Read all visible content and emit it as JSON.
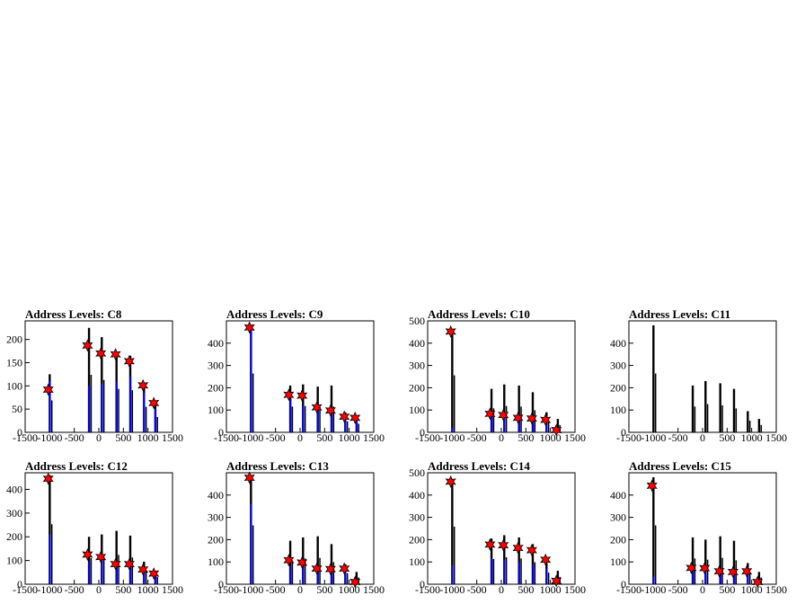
{
  "figure": {
    "background": "#ffffff",
    "colors": {
      "hist_black": "#000000",
      "hist_blue": "#0000ff",
      "marker_red": "#ff0000"
    }
  },
  "chart_data": [
    {
      "type": "histogram",
      "title": "Address Levels: C8",
      "xlim": [
        -1500,
        1500
      ],
      "ylim": [
        0,
        240
      ],
      "xticks": [
        "-1500",
        "-1000",
        "-500",
        "0",
        "500",
        "1000",
        "1500"
      ],
      "yticks": [
        0,
        50,
        100,
        150,
        200
      ],
      "black_peaks": [
        [
          -1000,
          125
        ],
        [
          -1020,
          0
        ],
        [
          -200,
          225
        ],
        [
          60,
          205
        ],
        [
          360,
          170
        ],
        [
          640,
          165
        ],
        [
          920,
          100
        ],
        [
          1150,
          60
        ]
      ],
      "blue_peaks": [
        [
          -1000,
          110
        ],
        [
          -200,
          100
        ],
        [
          60,
          105
        ],
        [
          360,
          110
        ],
        [
          640,
          120
        ],
        [
          920,
          85
        ],
        [
          1150,
          50
        ]
      ],
      "markers": [
        [
          -1030,
          92
        ],
        [
          -230,
          187
        ],
        [
          40,
          170
        ],
        [
          340,
          168
        ],
        [
          620,
          153
        ],
        [
          900,
          101
        ],
        [
          1120,
          63
        ]
      ]
    },
    {
      "type": "histogram",
      "title": "Address Levels: C9",
      "xlim": [
        -1500,
        1500
      ],
      "ylim": [
        0,
        500
      ],
      "xticks": [
        "-1500",
        "-1000",
        "-500",
        "0",
        "500",
        "1000",
        "1500"
      ],
      "yticks": [
        0,
        100,
        200,
        300,
        400
      ],
      "black_peaks": [
        [
          -1000,
          480
        ],
        [
          -200,
          210
        ],
        [
          60,
          215
        ],
        [
          360,
          205
        ],
        [
          640,
          210
        ],
        [
          920,
          90
        ],
        [
          1150,
          70
        ]
      ],
      "blue_peaks": [
        [
          -1000,
          480
        ],
        [
          -200,
          150
        ],
        [
          60,
          120
        ],
        [
          360,
          120
        ],
        [
          640,
          110
        ],
        [
          920,
          70
        ],
        [
          1150,
          50
        ]
      ],
      "markers": [
        [
          -1030,
          470
        ],
        [
          -230,
          168
        ],
        [
          40,
          165
        ],
        [
          340,
          112
        ],
        [
          620,
          98
        ],
        [
          900,
          70
        ],
        [
          1120,
          65
        ]
      ]
    },
    {
      "type": "histogram",
      "title": "Address Levels: C10",
      "xlim": [
        -1500,
        1500
      ],
      "ylim": [
        0,
        500
      ],
      "xticks": [
        "-1500",
        "-1000",
        "-500",
        "0",
        "500",
        "1000",
        "1500"
      ],
      "yticks": [
        0,
        100,
        200,
        300,
        400,
        500
      ],
      "black_peaks": [
        [
          -1000,
          465
        ],
        [
          -200,
          195
        ],
        [
          60,
          215
        ],
        [
          360,
          210
        ],
        [
          640,
          180
        ],
        [
          920,
          90
        ],
        [
          1150,
          60
        ]
      ],
      "blue_peaks": [
        [
          -1000,
          20
        ],
        [
          -200,
          70
        ],
        [
          60,
          70
        ],
        [
          360,
          60
        ],
        [
          640,
          50
        ],
        [
          920,
          40
        ],
        [
          1150,
          15
        ]
      ],
      "markers": [
        [
          -1030,
          452
        ],
        [
          -230,
          83
        ],
        [
          40,
          78
        ],
        [
          340,
          65
        ],
        [
          620,
          62
        ],
        [
          900,
          56
        ],
        [
          1120,
          10
        ]
      ]
    },
    {
      "type": "histogram",
      "title": "Address Levels: C11",
      "xlim": [
        -1500,
        1500
      ],
      "ylim": [
        0,
        500
      ],
      "xticks": [
        "-1500",
        "-1000",
        "-500",
        "0",
        "500",
        "1000",
        "1500"
      ],
      "yticks": [
        0,
        100,
        200,
        300,
        400
      ],
      "black_peaks": [
        [
          -1000,
          480
        ],
        [
          -200,
          210
        ],
        [
          60,
          230
        ],
        [
          360,
          220
        ],
        [
          640,
          195
        ],
        [
          920,
          95
        ],
        [
          1150,
          60
        ]
      ],
      "blue_peaks": [],
      "markers": []
    },
    {
      "type": "histogram",
      "title": "Address Levels: C12",
      "xlim": [
        -1500,
        1500
      ],
      "ylim": [
        0,
        470
      ],
      "xticks": [
        "-1500",
        "-1000",
        "-500",
        "0",
        "500",
        "1000",
        "1500"
      ],
      "yticks": [
        0,
        100,
        200,
        300,
        400
      ],
      "black_peaks": [
        [
          -1000,
          460
        ],
        [
          -200,
          200
        ],
        [
          60,
          210
        ],
        [
          360,
          225
        ],
        [
          640,
          205
        ],
        [
          920,
          95
        ],
        [
          1150,
          55
        ]
      ],
      "blue_peaks": [
        [
          -1000,
          210
        ],
        [
          -200,
          95
        ],
        [
          60,
          100
        ],
        [
          360,
          95
        ],
        [
          640,
          90
        ],
        [
          920,
          65
        ],
        [
          1150,
          40
        ]
      ],
      "markers": [
        [
          -1030,
          445
        ],
        [
          -230,
          125
        ],
        [
          40,
          115
        ],
        [
          340,
          85
        ],
        [
          620,
          85
        ],
        [
          900,
          62
        ],
        [
          1120,
          45
        ]
      ]
    },
    {
      "type": "histogram",
      "title": "Address Levels: C13",
      "xlim": [
        -1500,
        1500
      ],
      "ylim": [
        0,
        500
      ],
      "xticks": [
        "-1500",
        "-1000",
        "-500",
        "0",
        "500",
        "1000",
        "1500"
      ],
      "yticks": [
        0,
        100,
        200,
        300,
        400
      ],
      "black_peaks": [
        [
          -1000,
          480
        ],
        [
          -200,
          195
        ],
        [
          60,
          210
        ],
        [
          360,
          215
        ],
        [
          640,
          180
        ],
        [
          920,
          90
        ],
        [
          1150,
          55
        ]
      ],
      "blue_peaks": [
        [
          -1000,
          360
        ],
        [
          -200,
          80
        ],
        [
          60,
          75
        ],
        [
          360,
          75
        ],
        [
          640,
          70
        ],
        [
          920,
          60
        ],
        [
          1150,
          20
        ]
      ],
      "markers": [
        [
          -1030,
          478
        ],
        [
          -230,
          108
        ],
        [
          40,
          97
        ],
        [
          340,
          70
        ],
        [
          620,
          68
        ],
        [
          900,
          70
        ],
        [
          1120,
          10
        ]
      ]
    },
    {
      "type": "histogram",
      "title": "Address Levels: C14",
      "xlim": [
        -1500,
        1500
      ],
      "ylim": [
        0,
        500
      ],
      "xticks": [
        "-1500",
        "-1000",
        "-500",
        "0",
        "500",
        "1000",
        "1500"
      ],
      "yticks": [
        0,
        100,
        200,
        300,
        400,
        500
      ],
      "black_peaks": [
        [
          -1000,
          470
        ],
        [
          -200,
          205
        ],
        [
          60,
          220
        ],
        [
          360,
          210
        ],
        [
          640,
          180
        ],
        [
          920,
          95
        ],
        [
          1150,
          60
        ]
      ],
      "blue_peaks": [
        [
          -1000,
          85
        ],
        [
          -200,
          115
        ],
        [
          60,
          110
        ],
        [
          360,
          100
        ],
        [
          640,
          90
        ],
        [
          920,
          70
        ],
        [
          1150,
          20
        ]
      ],
      "markers": [
        [
          -1030,
          460
        ],
        [
          -230,
          178
        ],
        [
          40,
          175
        ],
        [
          340,
          163
        ],
        [
          620,
          153
        ],
        [
          900,
          110
        ],
        [
          1120,
          15
        ]
      ]
    },
    {
      "type": "histogram",
      "title": "Address Levels: C15",
      "xlim": [
        -1500,
        1500
      ],
      "ylim": [
        0,
        500
      ],
      "xticks": [
        "-1500",
        "-1000",
        "-500",
        "0",
        "500",
        "1000",
        "1500"
      ],
      "yticks": [
        0,
        100,
        200,
        300,
        400
      ],
      "black_peaks": [
        [
          -1000,
          480
        ],
        [
          -200,
          210
        ],
        [
          60,
          200
        ],
        [
          360,
          215
        ],
        [
          640,
          195
        ],
        [
          920,
          95
        ],
        [
          1150,
          55
        ]
      ],
      "blue_peaks": [
        [
          -1000,
          35
        ],
        [
          -200,
          80
        ],
        [
          60,
          80
        ],
        [
          360,
          70
        ],
        [
          640,
          60
        ],
        [
          920,
          50
        ],
        [
          1150,
          10
        ]
      ],
      "markers": [
        [
          -1030,
          442
        ],
        [
          -230,
          73
        ],
        [
          40,
          72
        ],
        [
          340,
          58
        ],
        [
          620,
          55
        ],
        [
          900,
          58
        ],
        [
          1120,
          10
        ]
      ]
    }
  ]
}
